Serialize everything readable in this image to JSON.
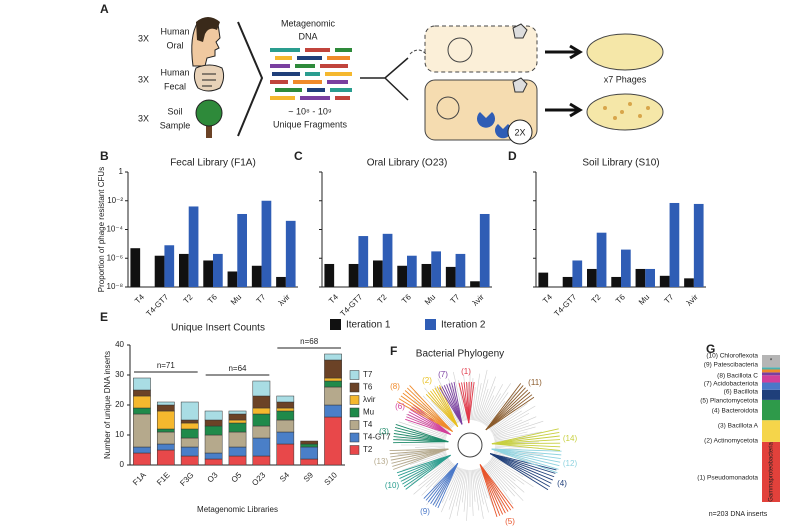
{
  "panel_a": {
    "letter": "A",
    "sources": [
      {
        "count": "3X",
        "label": [
          "Human",
          "Oral"
        ]
      },
      {
        "count": "3X",
        "label": [
          "Human",
          "Fecal"
        ]
      },
      {
        "count": "3X",
        "label": [
          "Soil",
          "Sample"
        ]
      }
    ],
    "library": [
      "Metagenomic",
      "DNA"
    ],
    "fragments": [
      "~ 10⁸ - 10⁹",
      "Unique Fragments"
    ],
    "phages": "x7 Phages",
    "iterations": "2X"
  },
  "chart_data": [
    {
      "type": "log-bar-panels",
      "ylabel": "Proportion of phage resistant CFUs",
      "categories": [
        "T4",
        "T4-GT7",
        "T2",
        "T6",
        "Mu",
        "T7",
        "λvir"
      ],
      "log": true,
      "ylim": [
        1e-08,
        1
      ],
      "yticks": [
        {
          "value": 1e-08,
          "label": "10⁻⁸"
        },
        {
          "value": 1e-06,
          "label": "10⁻⁶"
        },
        {
          "value": 0.0001,
          "label": "10⁻⁴"
        },
        {
          "value": 0.01,
          "label": "10⁻²"
        },
        1
      ],
      "series": [
        {
          "name": "Iteration 1",
          "color": "#111111"
        },
        {
          "name": "Iteration 2",
          "color": "#2f5db5"
        }
      ],
      "panels": [
        {
          "letter": "B",
          "title": "Fecal Library (F1A)",
          "values": [
            [
              5e-06,
              1.5e-06,
              2e-06,
              7e-07,
              1.2e-07,
              3e-07,
              5e-08
            ],
            [
              null,
              8e-06,
              0.004,
              2e-06,
              0.0012,
              0.01,
              0.0004
            ]
          ]
        },
        {
          "letter": "C",
          "title": "Oral Library (O23)",
          "values": [
            [
              4e-07,
              4e-07,
              7e-07,
              3e-07,
              4e-07,
              2.5e-07,
              2.5e-08
            ],
            [
              null,
              3.5e-05,
              5e-05,
              1.5e-06,
              3e-06,
              2e-06,
              0.0012
            ]
          ]
        },
        {
          "letter": "D",
          "title": "Soil Library (S10)",
          "values": [
            [
              1e-07,
              5e-08,
              1.8e-07,
              5e-08,
              1.8e-07,
              6e-08,
              4e-08
            ],
            [
              null,
              7e-07,
              6e-05,
              4e-06,
              1.8e-07,
              0.007,
              0.006
            ]
          ]
        }
      ]
    },
    {
      "type": "stacked-bar",
      "letter": "E",
      "title": "Unique Insert Counts",
      "xlabel": "Metagenomic Libraries",
      "ylabel": "Number of unique DNA inserts",
      "categories": [
        "F1A",
        "F1E",
        "F3G",
        "O3",
        "O5",
        "O23",
        "S4",
        "S9",
        "S10"
      ],
      "series": [
        {
          "name": "T2",
          "color": "#e8484a",
          "values": [
            4,
            5,
            3,
            2,
            3,
            3,
            7,
            2,
            16
          ]
        },
        {
          "name": "T4-GT7",
          "color": "#4a7fc8",
          "values": [
            2,
            2,
            3,
            2,
            3,
            6,
            4,
            4,
            4
          ]
        },
        {
          "name": "T4",
          "color": "#b5a98c",
          "values": [
            11,
            4,
            3,
            6,
            5,
            4,
            4,
            0,
            6
          ]
        },
        {
          "name": "Mu",
          "color": "#1f8a4a",
          "values": [
            2,
            1,
            3,
            3,
            3,
            4,
            3,
            1,
            2
          ]
        },
        {
          "name": "λvir",
          "color": "#f5b82e",
          "values": [
            4,
            6,
            2,
            0,
            1,
            2,
            1,
            0,
            1
          ]
        },
        {
          "name": "T6",
          "color": "#6b4226",
          "values": [
            2,
            2,
            1,
            2,
            2,
            4,
            2,
            1,
            6
          ]
        },
        {
          "name": "T7",
          "color": "#a9dde4",
          "values": [
            4,
            1,
            6,
            3,
            1,
            5,
            2,
            0,
            2
          ]
        }
      ],
      "ylim": [
        0,
        40
      ],
      "yticks": [
        0,
        10,
        20,
        30,
        40
      ],
      "annotations": [
        "n=71",
        "n=64",
        "n=68"
      ]
    },
    {
      "type": "stacked-column",
      "letter": "G",
      "categories": [
        "(1) Pseudomonadota",
        "(2) Actinomycetota",
        "(3) Bacillota A",
        "(4) Bacteroidota",
        "(5) Planctomycetota",
        "(6) Bacillota",
        "(7) Acidobacteriota",
        "(8) Bacillota C",
        "(9) Patescibacteria",
        "(10) Chloroflexota"
      ],
      "values": [
        83,
        30,
        28,
        14,
        10,
        10,
        4,
        4,
        3,
        17
      ],
      "colors": [
        "#e2413b",
        "#f5d54a",
        "#2e9a4a",
        "#1f3f7a",
        "#4a78c8",
        "#d23f9a",
        "#7a3fa0",
        "#f08a2a",
        "#4ab0b0",
        "#b5b5b5"
      ],
      "segment_labels": [
        "Gammaproteobacteria",
        null,
        null,
        null,
        null,
        null,
        null,
        null,
        null,
        "*"
      ],
      "note": "n=203 DNA inserts"
    }
  ],
  "panel_f": {
    "letter": "F",
    "title": "Bacterial Phylogeny",
    "clades": [
      "(1)",
      "(2)",
      "(3)",
      "(4)",
      "(5)",
      "(6)",
      "(7)",
      "(8)",
      "(9)",
      "(10)",
      "(11)",
      "(12)",
      "(13)",
      "(14)"
    ]
  }
}
